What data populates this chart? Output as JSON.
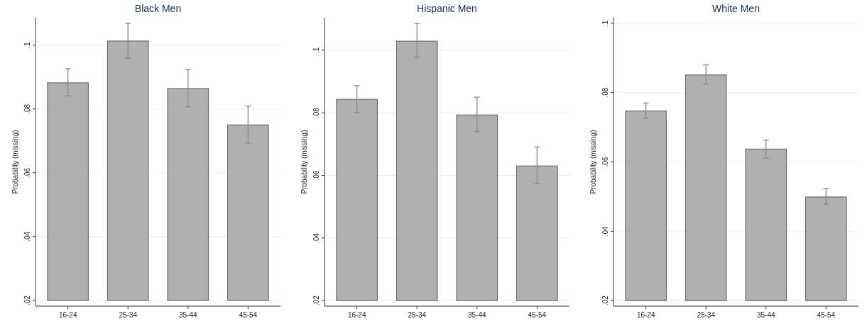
{
  "chart_data": [
    {
      "type": "bar",
      "title": "Black Men",
      "ylabel": "Probability (missing)",
      "categories": [
        "16-24",
        "25-34",
        "35-44",
        "45-54"
      ],
      "base": [
        0.02,
        0.02,
        0.02,
        0.02
      ],
      "values": [
        0.0682,
        0.0813,
        0.0664,
        0.055
      ],
      "color": "#b0b0b0",
      "errors": [
        [
          0.0841,
          0.0926
        ],
        [
          0.0959,
          0.1069
        ],
        [
          0.0807,
          0.0924
        ],
        [
          0.0693,
          0.0809
        ]
      ],
      "ylim": [
        0.0182,
        0.1086
      ],
      "yticks": [
        {
          "value": 0.02,
          "label": ".02"
        },
        {
          "value": 0.04,
          "label": ".04"
        },
        {
          "value": 0.06,
          "label": ".06"
        },
        {
          "value": 0.08,
          "label": ".08"
        },
        {
          "value": 0.1,
          "label": ".1"
        }
      ],
      "grid": "y"
    },
    {
      "type": "bar",
      "title": "Hispanic Men",
      "ylabel": "Probability (missing)",
      "categories": [
        "16-24",
        "25-34",
        "35-44",
        "45-54"
      ],
      "base": [
        0.02,
        0.02,
        0.02,
        0.02
      ],
      "values": [
        0.0643,
        0.0829,
        0.0593,
        0.043
      ],
      "color": "#b0b0b0",
      "errors": [
        [
          0.0801,
          0.0887
        ],
        [
          0.0977,
          0.1086
        ],
        [
          0.074,
          0.085
        ],
        [
          0.0574,
          0.0691
        ]
      ],
      "ylim": [
        0.0182,
        0.1104
      ],
      "yticks": [
        {
          "value": 0.02,
          "label": ".02"
        },
        {
          "value": 0.04,
          "label": ".04"
        },
        {
          "value": 0.06,
          "label": ".06"
        },
        {
          "value": 0.08,
          "label": ".08"
        },
        {
          "value": 0.1,
          "label": ".1"
        }
      ],
      "grid": "y"
    },
    {
      "type": "bar",
      "title": "White Men",
      "ylabel": "Probability (missing)",
      "categories": [
        "16-24",
        "25-34",
        "35-44",
        "45-54"
      ],
      "base": [
        0.02,
        0.02,
        0.02,
        0.02
      ],
      "values": [
        0.0547,
        0.0651,
        0.0437,
        0.0299
      ],
      "color": "#b0b0b0",
      "errors": [
        [
          0.0725,
          0.077
        ],
        [
          0.0824,
          0.088
        ],
        [
          0.0611,
          0.0663
        ],
        [
          0.0478,
          0.0523
        ]
      ],
      "ylim": [
        0.0184,
        0.1016
      ],
      "yticks": [
        {
          "value": 0.02,
          "label": ".02"
        },
        {
          "value": 0.04,
          "label": ".04"
        },
        {
          "value": 0.06,
          "label": ".06"
        },
        {
          "value": 0.08,
          "label": ".08"
        },
        {
          "value": 0.1,
          "label": ".1"
        }
      ],
      "grid": "y"
    }
  ]
}
